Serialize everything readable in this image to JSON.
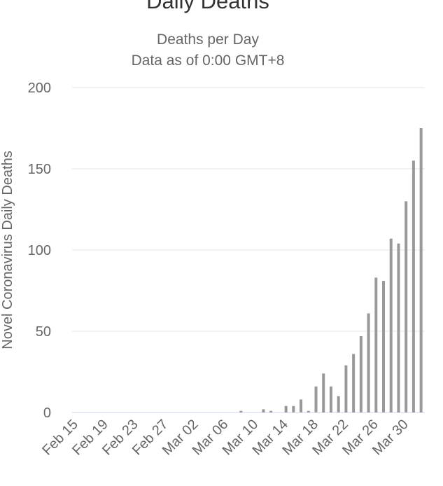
{
  "chart_data": {
    "type": "bar",
    "title": "Daily Deaths",
    "subtitle": [
      "Deaths per Day",
      "Data as of 0:00 GMT+8"
    ],
    "y_label": "Novel Coronavirus Daily Deaths",
    "categories": [
      "Feb 15",
      null,
      null,
      null,
      "Feb 19",
      null,
      null,
      null,
      "Feb 23",
      null,
      null,
      null,
      "Feb 27",
      null,
      null,
      null,
      "Mar 02",
      null,
      null,
      null,
      "Mar 06",
      null,
      null,
      null,
      "Mar 10",
      null,
      null,
      null,
      "Mar 14",
      null,
      null,
      null,
      "Mar 18",
      null,
      null,
      null,
      "Mar 22",
      null,
      null,
      null,
      "Mar 26",
      null,
      null,
      null,
      "Mar 30",
      null,
      null
    ],
    "values": [
      0,
      0,
      0,
      0,
      0,
      0,
      0,
      0,
      0,
      0,
      0,
      0,
      0,
      0,
      0,
      0,
      0,
      0,
      0,
      0,
      0,
      0,
      1,
      0,
      0,
      2,
      1,
      0,
      4,
      4,
      8,
      1,
      16,
      24,
      16,
      10,
      29,
      36,
      47,
      61,
      83,
      81,
      107,
      104,
      130,
      155,
      175
    ],
    "color": "#999999",
    "ylim": [
      0,
      200
    ],
    "yticks": [
      0,
      50,
      100,
      150,
      200
    ],
    "grid": true
  }
}
